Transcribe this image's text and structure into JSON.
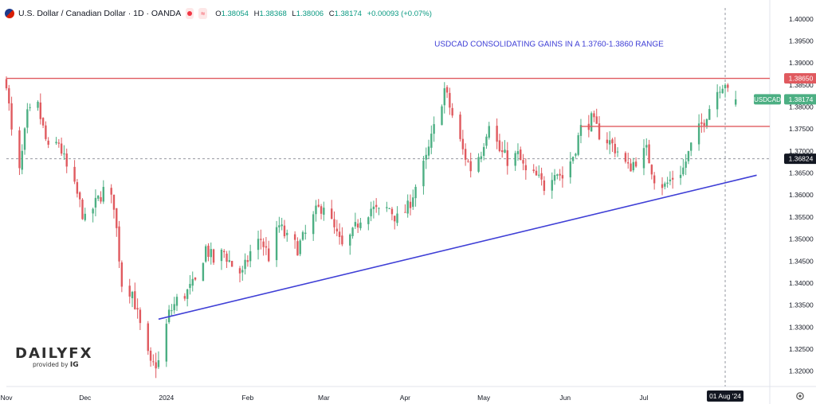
{
  "header": {
    "symbol_title": "U.S. Dollar / Canadian Dollar · 1D · OANDA",
    "badge_text": "≈",
    "ohlc": [
      {
        "key": "O",
        "value": "1.38054"
      },
      {
        "key": "H",
        "value": "1.38368"
      },
      {
        "key": "L",
        "value": "1.38006"
      },
      {
        "key": "C",
        "value": "1.38174"
      },
      {
        "key": "",
        "value": "+0.00093 (+0.07%)"
      }
    ]
  },
  "logo": {
    "main": "DAILYFX",
    "provided_by": "provided by",
    "brand": "IG"
  },
  "colors": {
    "up": "#4caf83",
    "down": "#e05a5f",
    "trendline": "#3f3fd6",
    "resistance": "#e05a5f",
    "annotation": "#3f3fd6"
  },
  "chart_data": {
    "type": "candlestick",
    "title": "USDCAD CONSOLIDATING GAINS IN A 1.3760-1.3860 RANGE",
    "y_ticks": [
      1.32,
      1.325,
      1.33,
      1.335,
      1.34,
      1.345,
      1.35,
      1.355,
      1.36,
      1.365,
      1.37,
      1.375,
      1.38,
      1.385,
      1.39,
      1.395,
      1.4
    ],
    "ylim": [
      1.3165,
      1.4025
    ],
    "x_ticks": [
      {
        "label": "Nov",
        "date": "2023-11-01"
      },
      {
        "label": "Dec",
        "date": "2023-12-01"
      },
      {
        "label": "2024",
        "date": "2024-01-01"
      },
      {
        "label": "Feb",
        "date": "2024-02-01"
      },
      {
        "label": "Mar",
        "date": "2024-03-01"
      },
      {
        "label": "Apr",
        "date": "2024-04-01"
      },
      {
        "label": "May",
        "date": "2024-05-01"
      },
      {
        "label": "Jun",
        "date": "2024-06-01"
      },
      {
        "label": "Jul",
        "date": "2024-07-01"
      }
    ],
    "xlim": [
      "2023-11-01",
      "2024-08-18"
    ],
    "crosshair": {
      "date": "2024-08-01",
      "price": 1.36824,
      "date_label": "01 Aug '24",
      "price_label": "1.36824"
    },
    "symbol_label": "USDCAD",
    "last_price": 1.38174,
    "last_price_label": "1.38174",
    "resistance_label": "1.38650",
    "lines": [
      {
        "name": "Horizontal resistance",
        "x1": "2023-11-01",
        "y1": 1.3865,
        "x2": "2024-08-18",
        "y2": 1.3865
      },
      {
        "name": "Range floor",
        "x1": "2024-06-07",
        "y1": 1.3756,
        "x2": "2024-08-18",
        "y2": 1.3756
      },
      {
        "name": "Rising trendline",
        "x1": "2023-12-29",
        "y1": 1.3318,
        "x2": "2024-08-13",
        "y2": 1.3645
      }
    ],
    "anchors": [
      [
        "2023-11-01",
        1.386
      ],
      [
        "2023-11-03",
        1.374
      ],
      [
        "2023-11-06",
        1.365
      ],
      [
        "2023-11-09",
        1.378
      ],
      [
        "2023-11-13",
        1.38
      ],
      [
        "2023-11-17",
        1.37
      ],
      [
        "2023-11-21",
        1.372
      ],
      [
        "2023-11-24",
        1.366
      ],
      [
        "2023-11-28",
        1.36
      ],
      [
        "2023-12-01",
        1.354
      ],
      [
        "2023-12-05",
        1.358
      ],
      [
        "2023-12-08",
        1.361
      ],
      [
        "2023-12-12",
        1.358
      ],
      [
        "2023-12-15",
        1.34
      ],
      [
        "2023-12-19",
        1.338
      ],
      [
        "2023-12-22",
        1.33
      ],
      [
        "2023-12-26",
        1.321
      ],
      [
        "2023-12-29",
        1.322
      ],
      [
        "2024-01-02",
        1.333
      ],
      [
        "2024-01-05",
        1.336
      ],
      [
        "2024-01-09",
        1.338
      ],
      [
        "2024-01-12",
        1.34
      ],
      [
        "2024-01-16",
        1.348
      ],
      [
        "2024-01-19",
        1.345
      ],
      [
        "2024-01-23",
        1.347
      ],
      [
        "2024-01-26",
        1.344
      ],
      [
        "2024-01-30",
        1.342
      ],
      [
        "2024-02-02",
        1.347
      ],
      [
        "2024-02-06",
        1.35
      ],
      [
        "2024-02-09",
        1.346
      ],
      [
        "2024-02-13",
        1.353
      ],
      [
        "2024-02-16",
        1.35
      ],
      [
        "2024-02-20",
        1.348
      ],
      [
        "2024-02-23",
        1.351
      ],
      [
        "2024-02-27",
        1.356
      ],
      [
        "2024-03-01",
        1.358
      ],
      [
        "2024-03-05",
        1.352
      ],
      [
        "2024-03-08",
        1.348
      ],
      [
        "2024-03-12",
        1.351
      ],
      [
        "2024-03-15",
        1.355
      ],
      [
        "2024-03-19",
        1.357
      ],
      [
        "2024-03-22",
        1.356
      ],
      [
        "2024-03-26",
        1.357
      ],
      [
        "2024-03-29",
        1.3545
      ],
      [
        "2024-04-02",
        1.357
      ],
      [
        "2024-04-05",
        1.362
      ],
      [
        "2024-04-09",
        1.368
      ],
      [
        "2024-04-12",
        1.375
      ],
      [
        "2024-04-16",
        1.384
      ],
      [
        "2024-04-19",
        1.378
      ],
      [
        "2024-04-23",
        1.37
      ],
      [
        "2024-04-26",
        1.366
      ],
      [
        "2024-04-30",
        1.37
      ],
      [
        "2024-05-03",
        1.377
      ],
      [
        "2024-05-07",
        1.37
      ],
      [
        "2024-05-10",
        1.368
      ],
      [
        "2024-05-14",
        1.369
      ],
      [
        "2024-05-17",
        1.365
      ],
      [
        "2024-05-21",
        1.364
      ],
      [
        "2024-05-24",
        1.362
      ],
      [
        "2024-05-28",
        1.366
      ],
      [
        "2024-05-31",
        1.364
      ],
      [
        "2024-06-04",
        1.369
      ],
      [
        "2024-06-07",
        1.375
      ],
      [
        "2024-06-11",
        1.377
      ],
      [
        "2024-06-14",
        1.374
      ],
      [
        "2024-06-18",
        1.372
      ],
      [
        "2024-06-21",
        1.37
      ],
      [
        "2024-06-25",
        1.366
      ],
      [
        "2024-06-28",
        1.368
      ],
      [
        "2024-07-02",
        1.37
      ],
      [
        "2024-07-05",
        1.364
      ],
      [
        "2024-07-09",
        1.362
      ],
      [
        "2024-07-12",
        1.364
      ],
      [
        "2024-07-16",
        1.366
      ],
      [
        "2024-07-19",
        1.371
      ],
      [
        "2024-07-23",
        1.376
      ],
      [
        "2024-07-26",
        1.38
      ],
      [
        "2024-07-30",
        1.385
      ],
      [
        "2024-08-01",
        1.3858
      ],
      [
        "2024-08-02",
        1.383
      ],
      [
        "2024-08-05",
        1.3817
      ]
    ]
  }
}
